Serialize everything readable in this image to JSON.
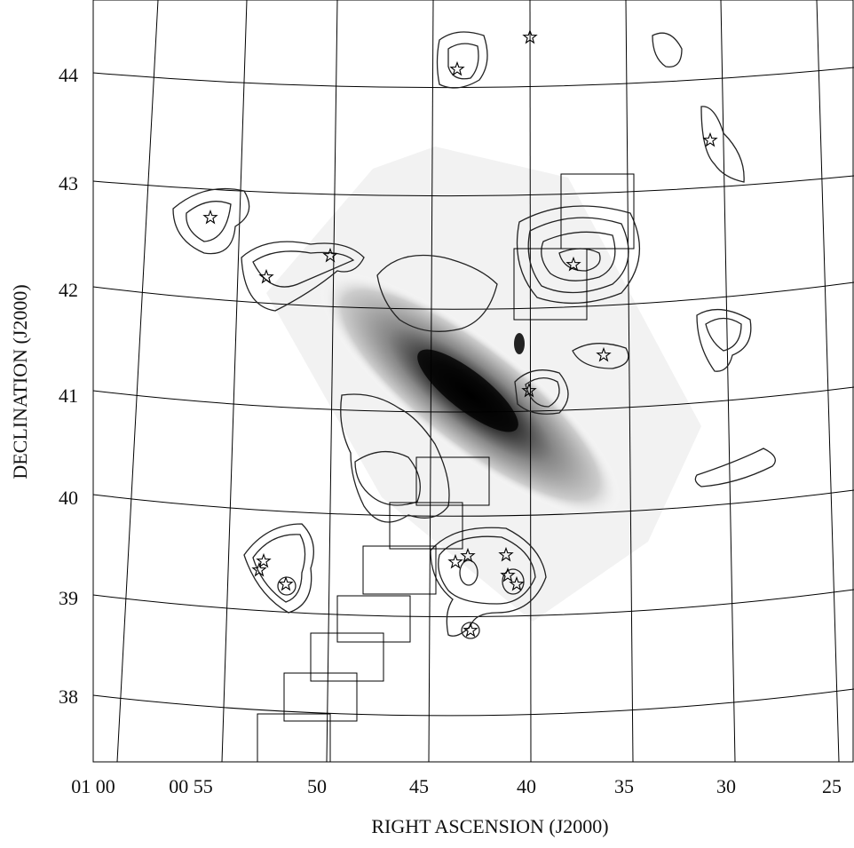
{
  "x_axis": {
    "label": "RIGHT ASCENSION (J2000)",
    "ticks": [
      "01 00",
      "00 55",
      "50",
      "45",
      "40",
      "35",
      "30",
      "25"
    ]
  },
  "y_axis": {
    "label": "DECLINATION (J2000)",
    "ticks": [
      "44",
      "43",
      "42",
      "41",
      "40",
      "39",
      "38"
    ]
  }
}
